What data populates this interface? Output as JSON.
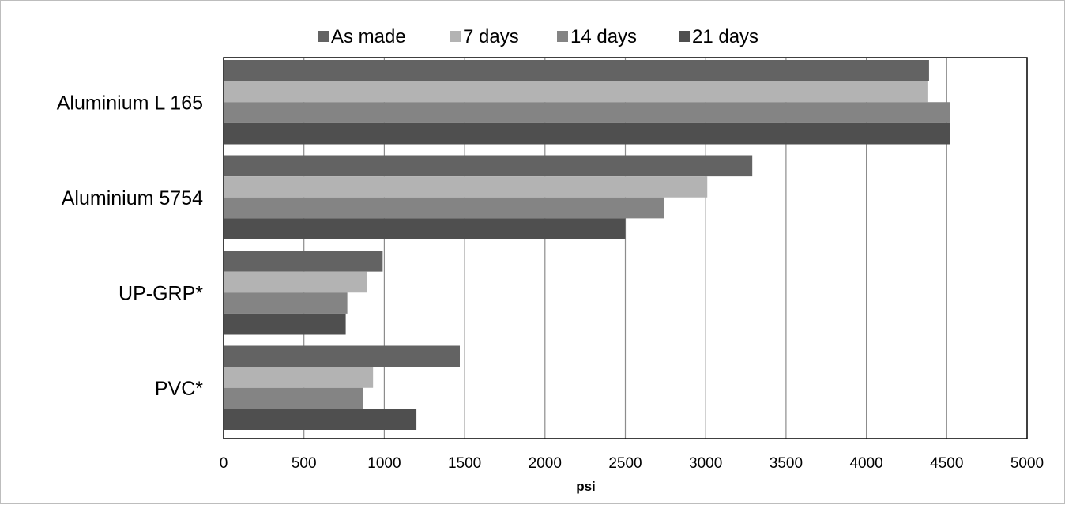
{
  "chart_data": {
    "type": "bar",
    "orientation": "horizontal",
    "categories": [
      "Aluminium L 165",
      "Aluminium 5754",
      "UP-GRP*",
      "PVC*"
    ],
    "series": [
      {
        "name": "As made",
        "color": "#636363",
        "values": [
          4390,
          3290,
          990,
          1470
        ]
      },
      {
        "name": "7 days",
        "color": "#b3b3b3",
        "values": [
          4380,
          3010,
          890,
          930
        ]
      },
      {
        "name": "14 days",
        "color": "#848484",
        "values": [
          4520,
          2740,
          770,
          870
        ]
      },
      {
        "name": "21 days",
        "color": "#4f4f4f",
        "values": [
          4520,
          2500,
          760,
          1200
        ]
      }
    ],
    "xlabel": "psi",
    "xlim": [
      0,
      5000
    ],
    "xticks": [
      "0",
      "500",
      "1000",
      "1500",
      "2000",
      "2500",
      "3000",
      "3500",
      "4000",
      "4500",
      "5000"
    ],
    "grid": "vertical",
    "legend": "top",
    "gridline_color": "#8c8c8c"
  }
}
